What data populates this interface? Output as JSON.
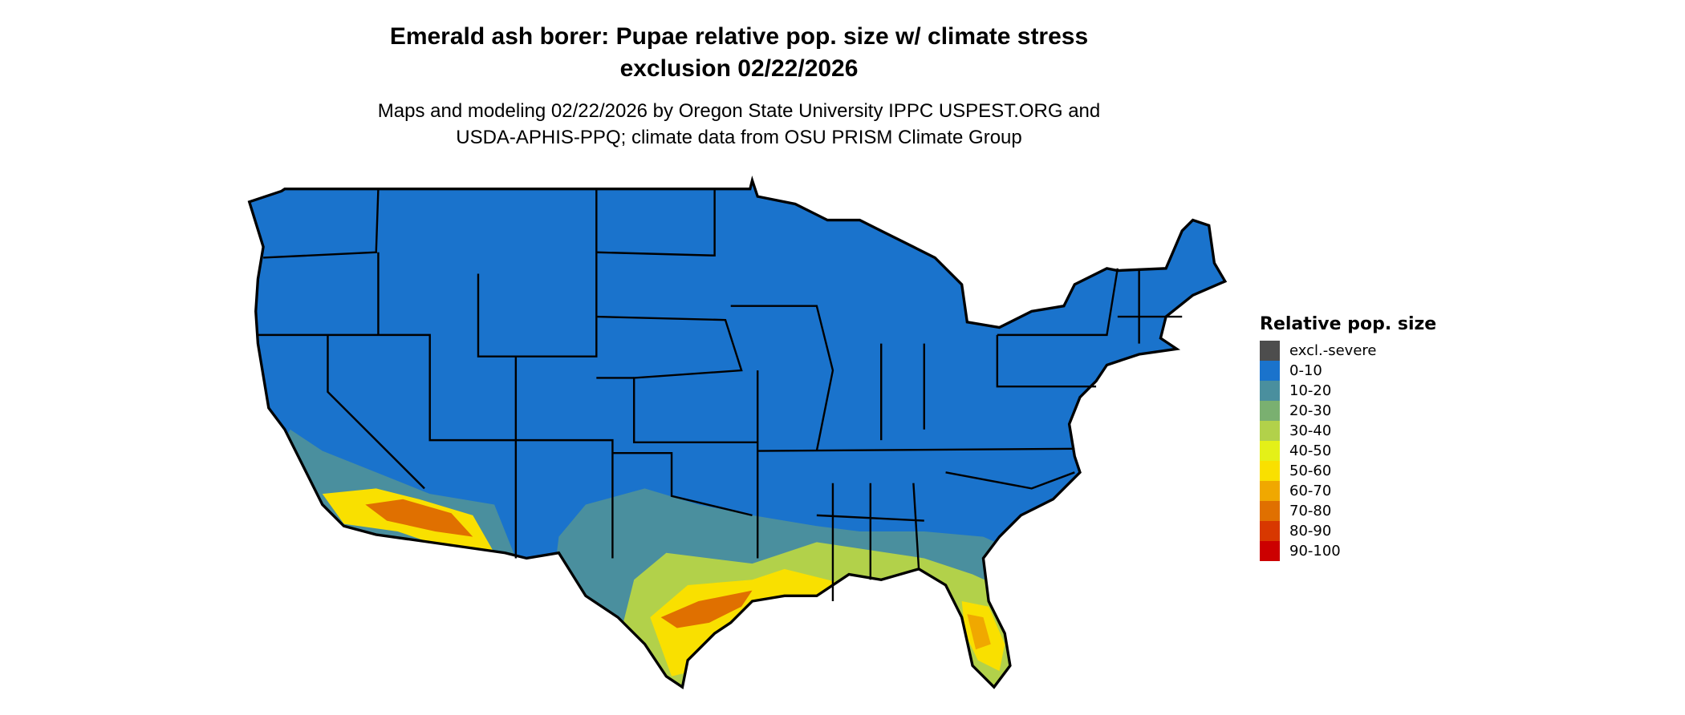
{
  "header": {
    "title_line1": "Emerald ash borer: Pupae relative pop. size w/ climate stress",
    "title_line2": "exclusion 02/22/2026",
    "subtitle_line1": "Maps and modeling 02/22/2026 by Oregon State University IPPC USPEST.ORG and",
    "subtitle_line2": "USDA-APHIS-PPQ; climate data from OSU PRISM Climate Group"
  },
  "map": {
    "region": "Contiguous United States",
    "base_color": "#1a73cc",
    "border_color": "#000000"
  },
  "legend": {
    "title": "Relative pop. size",
    "items": [
      {
        "label": "excl.-severe",
        "color": "#4d4d4d"
      },
      {
        "label": "0-10",
        "color": "#1a73cc"
      },
      {
        "label": "10-20",
        "color": "#4a8f9e"
      },
      {
        "label": "20-30",
        "color": "#7ab070"
      },
      {
        "label": "30-40",
        "color": "#b2d14a"
      },
      {
        "label": "40-50",
        "color": "#e4f018"
      },
      {
        "label": "50-60",
        "color": "#f9e000"
      },
      {
        "label": "60-70",
        "color": "#f0a800"
      },
      {
        "label": "70-80",
        "color": "#e07000"
      },
      {
        "label": "80-90",
        "color": "#d83800"
      },
      {
        "label": "90-100",
        "color": "#cc0000"
      }
    ]
  }
}
